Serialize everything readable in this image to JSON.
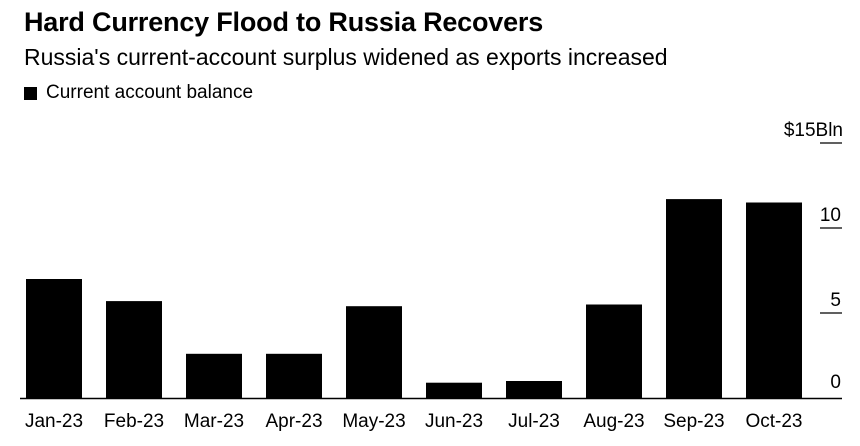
{
  "header": {
    "title": "Hard Currency Flood to Russia Recovers",
    "subtitle": "Russia's current-account surplus widened as exports increased"
  },
  "colors": {
    "bar": "#000000",
    "axis": "#000000",
    "background": "#ffffff"
  },
  "chart_data": {
    "type": "bar",
    "title": "Hard Currency Flood to Russia Recovers",
    "subtitle": "Russia's current-account surplus widened as exports increased",
    "xlabel": "",
    "ylabel": "",
    "y_unit_label": "$15Bln",
    "ylim": [
      0,
      15
    ],
    "yticks": [
      0,
      5,
      10,
      15
    ],
    "ytick_labels": [
      "0",
      "5",
      "10",
      "$15Bln"
    ],
    "y_axis_side": "right",
    "grid": false,
    "legend": {
      "position": "top-left",
      "entries": [
        "Current account balance"
      ]
    },
    "categories": [
      "Jan-23",
      "Feb-23",
      "Mar-23",
      "Apr-23",
      "May-23",
      "Jun-23",
      "Jul-23",
      "Aug-23",
      "Sep-23",
      "Oct-23"
    ],
    "series": [
      {
        "name": "Current account balance",
        "values": [
          7.0,
          5.7,
          2.6,
          2.6,
          5.4,
          0.9,
          1.0,
          5.5,
          11.7,
          11.5
        ]
      }
    ]
  }
}
